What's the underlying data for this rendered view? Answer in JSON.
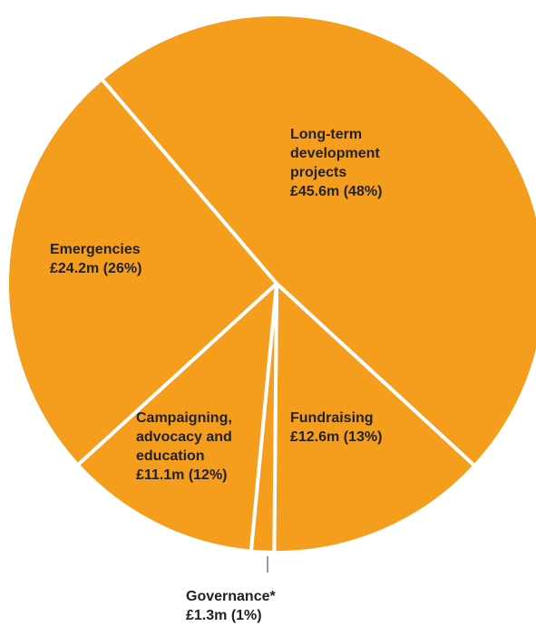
{
  "chart_data": {
    "type": "pie",
    "categories": [
      "Long-term development projects",
      "Fundraising",
      "Governance*",
      "Campaigning, advocacy and education",
      "Emergencies"
    ],
    "values": [
      45.6,
      12.6,
      1.3,
      11.1,
      24.2
    ],
    "value_labels": [
      "£45.6m (48%)",
      "£12.6m (13%)",
      "£1.3m (1%)",
      "£11.1m (12%)",
      "£24.2m (26%)"
    ],
    "color": "#f59e1e"
  }
}
